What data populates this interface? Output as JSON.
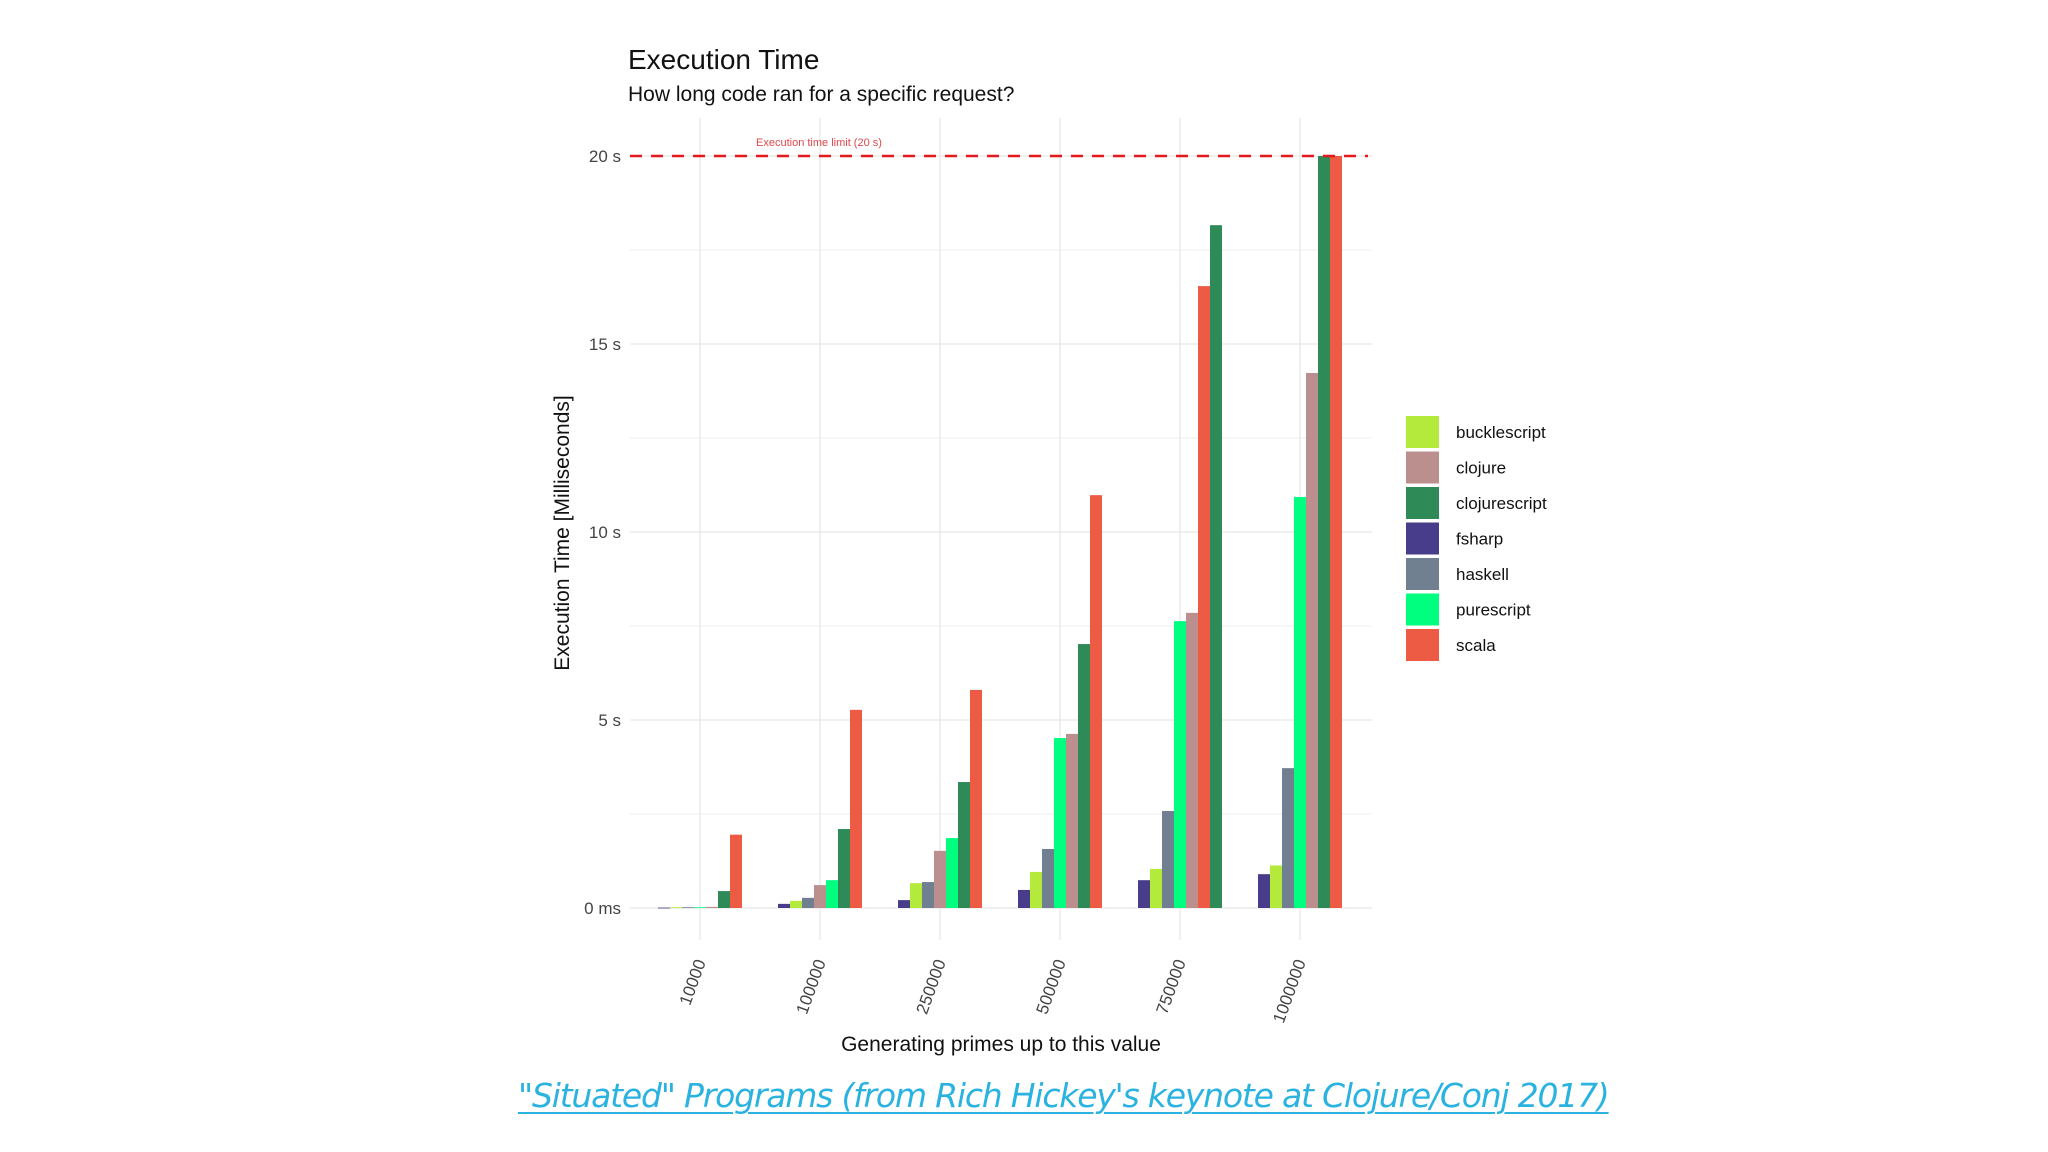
{
  "chart_data": {
    "type": "bar",
    "title": "Execution Time",
    "subtitle": "How long code ran for a specific request?",
    "xlabel": "Generating primes up to this value",
    "ylabel": "Execution Time [Milliseconds]",
    "ylim": [
      0,
      20
    ],
    "y_ticks": [
      {
        "value": 0,
        "label": "0 ms"
      },
      {
        "value": 5,
        "label": "5 s"
      },
      {
        "value": 10,
        "label": "10 s"
      },
      {
        "value": 15,
        "label": "15 s"
      },
      {
        "value": 20,
        "label": "20 s"
      }
    ],
    "y_unit": "seconds",
    "grid": true,
    "legend_position": "right",
    "categories": [
      "10000",
      "100000",
      "250000",
      "500000",
      "750000",
      "1000000"
    ],
    "series": [
      {
        "name": "bucklescript",
        "color": "#b3ea3b",
        "values": [
          0.02,
          0.19,
          0.66,
          0.96,
          1.04,
          1.13
        ]
      },
      {
        "name": "clojure",
        "color": "#bc8f8f",
        "values": [
          0.03,
          0.61,
          1.52,
          4.63,
          7.85,
          14.23
        ]
      },
      {
        "name": "clojurescript",
        "color": "#2e8b57",
        "values": [
          0.45,
          2.1,
          3.35,
          7.02,
          18.16,
          20.0
        ]
      },
      {
        "name": "fsharp",
        "color": "#483d8b",
        "values": [
          0.01,
          0.11,
          0.21,
          0.48,
          0.74,
          0.9
        ]
      },
      {
        "name": "haskell",
        "color": "#708090",
        "values": [
          0.02,
          0.27,
          0.69,
          1.57,
          2.58,
          3.72
        ]
      },
      {
        "name": "purescript",
        "color": "#00ff7f",
        "values": [
          0.02,
          0.74,
          1.86,
          4.52,
          7.63,
          10.93
        ]
      },
      {
        "name": "scala",
        "color": "#ed5b45",
        "values": [
          1.95,
          5.27,
          5.8,
          10.98,
          16.54,
          20.0
        ]
      }
    ],
    "bar_order_note": "within each group bars are sorted ascending by value",
    "annotations": [
      {
        "type": "hline",
        "y": 20,
        "style": "dashed",
        "color": "#e3191c",
        "label": "Execution time limit (20 s)"
      }
    ]
  },
  "caption": {
    "text": "\"Situated\" Programs (from Rich Hickey's keynote at Clojure/Conj 2017)",
    "color": "#2ab2e0"
  }
}
